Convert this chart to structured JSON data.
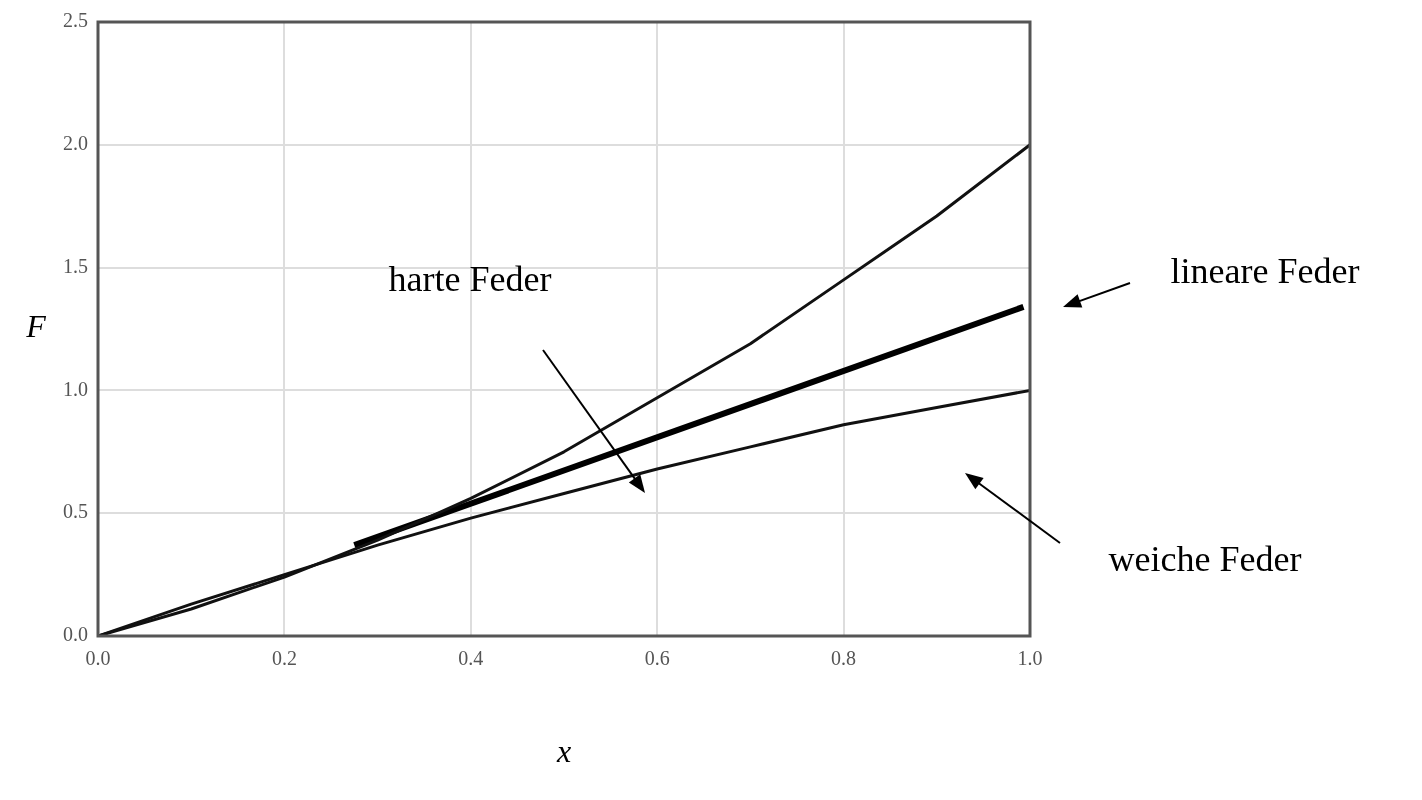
{
  "chart_data": {
    "type": "line",
    "xlabel": "x",
    "ylabel": "F",
    "xlim": [
      0,
      1
    ],
    "ylim": [
      0,
      2.5
    ],
    "xticks": [
      {
        "value": 0,
        "label": "0.0"
      },
      {
        "value": 0.2,
        "label": "0.2"
      },
      {
        "value": 0.4,
        "label": "0.4"
      },
      {
        "value": 0.6,
        "label": "0.6"
      },
      {
        "value": 0.8,
        "label": "0.8"
      },
      {
        "value": 1,
        "label": "1.0"
      }
    ],
    "yticks": [
      {
        "value": 0,
        "label": "0.0"
      },
      {
        "value": 0.5,
        "label": "0.5"
      },
      {
        "value": 1,
        "label": "1.0"
      },
      {
        "value": 1.5,
        "label": "1.5"
      },
      {
        "value": 2,
        "label": "2.0"
      },
      {
        "value": 2.5,
        "label": "2.5"
      }
    ],
    "grid": true,
    "series": [
      {
        "color": "#111111",
        "x": [
          0,
          0.1,
          0.2,
          0.3,
          0.4,
          0.5,
          0.6,
          0.7,
          0.8,
          0.9,
          1
        ],
        "values": [
          0,
          0.11,
          0.24,
          0.39,
          0.56,
          0.75,
          0.97,
          1.19,
          1.45,
          1.71,
          2.0
        ]
      },
      {
        "color": "#000000",
        "x": [
          0.275,
          0.993
        ],
        "values": [
          0.37,
          1.34
        ]
      },
      {
        "color": "#111111",
        "x": [
          0,
          0.1,
          0.2,
          0.3,
          0.4,
          0.5,
          0.6,
          0.7,
          0.8,
          0.9,
          1
        ],
        "values": [
          0,
          0.13,
          0.25,
          0.37,
          0.48,
          0.58,
          0.68,
          0.77,
          0.86,
          0.93,
          1.0
        ]
      }
    ],
    "annotations": [
      "harte Feder",
      "lineare Feder",
      "weiche Feder"
    ]
  }
}
